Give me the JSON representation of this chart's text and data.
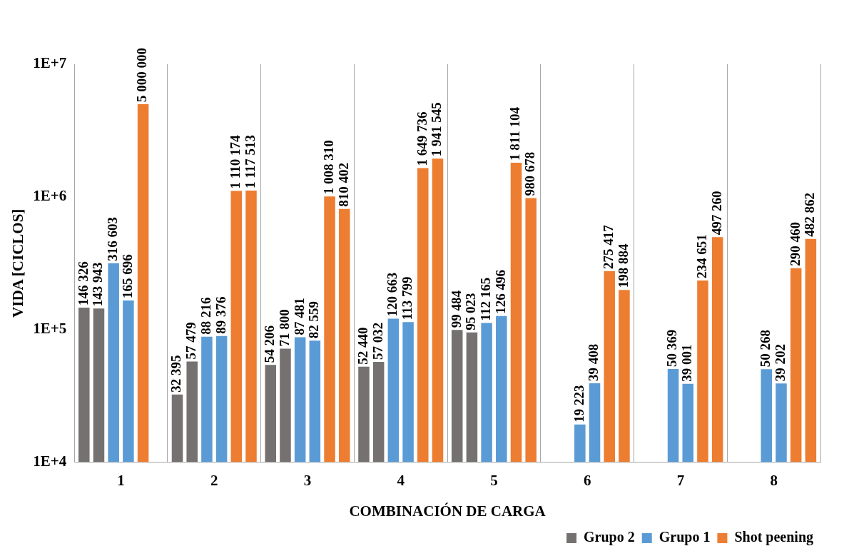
{
  "chart_data": {
    "type": "bar",
    "xlabel": "COMBINACIÓN DE CARGA",
    "ylabel": "VIDA [CICLOS]",
    "categories": [
      "1",
      "2",
      "3",
      "4",
      "5",
      "6",
      "7",
      "8"
    ],
    "series": [
      {
        "name": "Grupo 2",
        "color": "#767171",
        "values": [
          146326,
          32395,
          54206,
          52440,
          99484,
          null,
          null,
          null
        ],
        "value_labels": [
          "146 326",
          "32 395",
          "54 206",
          "52 440",
          "99 484",
          null,
          null,
          null
        ]
      },
      {
        "color": "#767171",
        "values": [
          143943,
          57479,
          71800,
          57032,
          95023,
          null,
          null,
          null
        ],
        "value_labels": [
          "143 943",
          "57 479",
          "71 800",
          "57 032",
          "95 023",
          null,
          null,
          null
        ]
      },
      {
        "name": "Grupo 1",
        "color": "#5b9bd5",
        "values": [
          316603,
          88216,
          87481,
          120663,
          112165,
          19223,
          50369,
          50268
        ],
        "value_labels": [
          "316 603",
          "88 216",
          "87 481",
          "120 663",
          "112 165",
          "19 223",
          "50 369",
          "50 268"
        ]
      },
      {
        "color": "#5b9bd5",
        "values": [
          165696,
          89376,
          82559,
          113799,
          126496,
          39408,
          39001,
          39202
        ],
        "value_labels": [
          "165 696",
          "89 376",
          "82 559",
          "113 799",
          "126 496",
          "39 408",
          "39 001",
          "39 202"
        ]
      },
      {
        "name": "Shot peening",
        "color": "#ed7d31",
        "values": [
          5000000,
          1110174,
          1008310,
          1649736,
          1811104,
          275417,
          234651,
          290460
        ],
        "value_labels": [
          "5 000 000",
          "1 110 174",
          "1 008 310",
          "1 649 736",
          "1 811 104",
          "275 417",
          "234 651",
          "290 460"
        ]
      },
      {
        "color": "#ed7d31",
        "values": [
          null,
          1117513,
          810402,
          1941545,
          980678,
          198884,
          497260,
          482862
        ],
        "value_labels": [
          null,
          "1 117 513",
          "810 402",
          "1 941 545",
          "980 678",
          "198 884",
          "497 260",
          "482 862"
        ]
      }
    ],
    "log": true,
    "ylim": [
      10000,
      10000000
    ],
    "yticks": [
      {
        "value": 10000,
        "label": "1E+4"
      },
      {
        "value": 100000,
        "label": "1E+5"
      },
      {
        "value": 1000000,
        "label": "1E+6"
      },
      {
        "value": 10000000,
        "label": "1E+7"
      }
    ],
    "grid": "x",
    "legend": "bottom"
  }
}
